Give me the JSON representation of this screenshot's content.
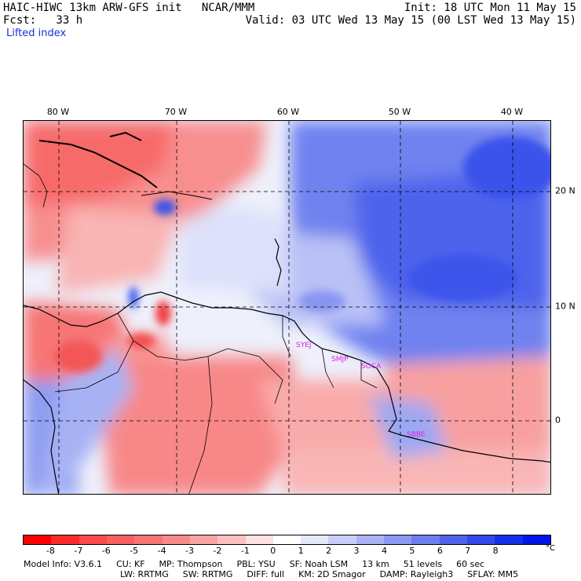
{
  "header": {
    "title": "HAIC-HIWC 13km ARW-GFS init   NCAR/MMM",
    "fcst": "Fcst:   33 h",
    "field": "Lifted index",
    "init": "Init: 18 UTC Mon 11 May 15",
    "valid": "Valid: 03 UTC Wed 13 May 15 (00 LST Wed 13 May 15)"
  },
  "longitude_labels": [
    "80 W",
    "70 W",
    "60 W",
    "50 W",
    "40 W"
  ],
  "latitude_labels": [
    "20 N",
    "10 N",
    "0"
  ],
  "stations": [
    "SYEJ",
    "SMJP",
    "SOCA",
    "SBBE"
  ],
  "colorbar": {
    "ticks": [
      "-8",
      "-7",
      "-6",
      "-5",
      "-4",
      "-3",
      "-2",
      "-1",
      "0",
      "1",
      "2",
      "3",
      "4",
      "5",
      "6",
      "7",
      "8"
    ],
    "unit": "°C",
    "colors": [
      "#ff0000",
      "#ff2a2a",
      "#fc4a4a",
      "#f86060",
      "#f77575",
      "#f88a8a",
      "#f9a3a3",
      "#fbc0c0",
      "#fde0e0",
      "#ffffff",
      "#e6e9fc",
      "#c8cef9",
      "#aab3f5",
      "#8c98f1",
      "#6e7eee",
      "#5064eb",
      "#3349ea",
      "#1430ea",
      "#0015e8"
    ]
  },
  "model_info": {
    "line1": [
      "Model Info: V3.6.1",
      "CU: KF",
      "MP: Thompson",
      "PBL: YSU",
      "SF: Noah LSM",
      "13 km",
      "51 levels",
      "60 sec"
    ],
    "line2": [
      "LW: RRTMG",
      "SW: RRTMG",
      "DIFF: full",
      "KM: 2D Smagor",
      "DAMP: Rayleigh3",
      "SFLAY: MM5"
    ]
  },
  "colors": {
    "station_label": "#e01ee0",
    "field_label": "#1a2fd8"
  }
}
